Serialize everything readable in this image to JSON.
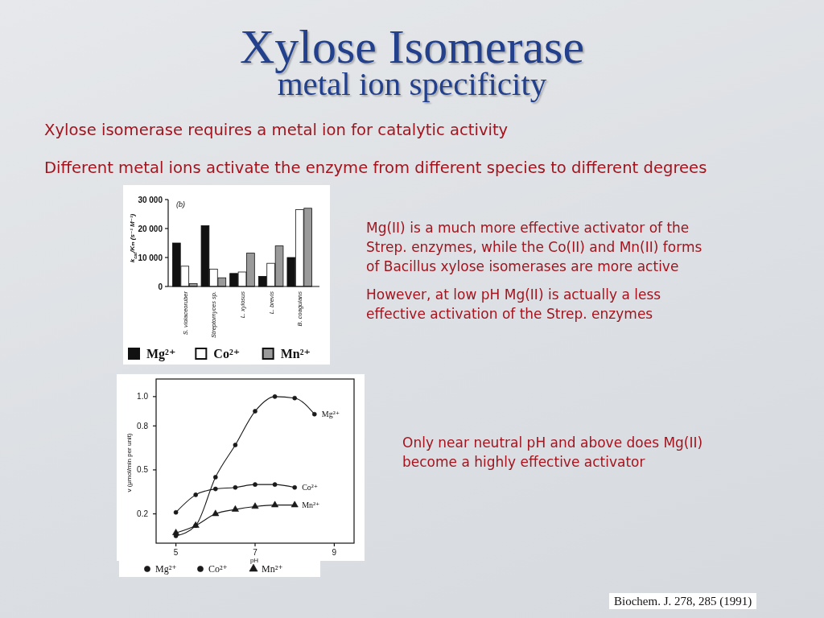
{
  "chart_data": [
    {
      "type": "other",
      "title": "Xylose Isomerase",
      "subtitle": "metal ion specificity",
      "annotations": [
        "Xylose isomerase requires a metal ion for catalytic activity",
        "Different metal ions activate the enzyme from different species to different degrees",
        "Mg(II) is a much more effective activator of the Strep. enzymes, while the Co(II) and Mn(II) forms of Bacillus xylose isomerases are more active",
        "However, at low pH Mg(II) is actually a less effective activation of the Strep. enzymes",
        "Only near neutral pH and above does Mg(II) become a highly effective activator",
        "Biochem. J. 278, 285 (1991)"
      ]
    },
    {
      "type": "bar",
      "ylabel": "k$_{cat}$/Kₘ (s⁻¹ M⁻¹)",
      "annotations": [
        "(b)"
      ],
      "categories": [
        "S. violaceoruber",
        "Streptomyces sp.",
        "L. xylosus",
        "L. brevis",
        "B. coagulans"
      ],
      "series": [
        {
          "name": "Mg²⁺",
          "color": "#111111",
          "values": [
            15000,
            21000,
            4500,
            3500,
            10000
          ]
        },
        {
          "name": "Co²⁺",
          "color": "#ffffff",
          "values": [
            7000,
            6000,
            5000,
            8000,
            26500
          ]
        },
        {
          "name": "Mn²⁺",
          "color": "#9a9a9a",
          "values": [
            1000,
            3000,
            11500,
            14000,
            27000
          ]
        }
      ],
      "ylim": [
        0,
        30000
      ],
      "yticks": [
        0,
        {
          "value": 10000,
          "label": "10 000"
        },
        {
          "value": 20000,
          "label": "20 000"
        },
        {
          "value": 30000,
          "label": "30 000"
        }
      ],
      "legend": "bottom"
    },
    {
      "type": "line",
      "xlabel": "pH",
      "ylabel": "v (μmol/min per unit)",
      "xlim": [
        4.5,
        9.5
      ],
      "xticks": [
        5,
        7,
        9
      ],
      "ylim": [
        0,
        1.12
      ],
      "yticks": [
        0.2,
        0.5,
        0.8,
        {
          "value": 1,
          "label": "1.0"
        }
      ],
      "series": [
        {
          "name": "Mg²⁺",
          "color": "#1a1a1a",
          "marker": "circle",
          "x": [
            5,
            5.5,
            6,
            6.5,
            7,
            7.5,
            8,
            8.5
          ],
          "values": [
            0.05,
            0.12,
            0.45,
            0.67,
            0.9,
            1.0,
            0.99,
            0.88
          ]
        },
        {
          "name": "Co²⁺",
          "color": "#1a1a1a",
          "marker": "circle",
          "x": [
            5,
            5.5,
            6,
            6.5,
            7,
            7.5,
            8
          ],
          "values": [
            0.21,
            0.33,
            0.37,
            0.38,
            0.4,
            0.4,
            0.38
          ]
        },
        {
          "name": "Mn²⁺",
          "color": "#1a1a1a",
          "marker": "triangle",
          "x": [
            5,
            5.5,
            6,
            6.5,
            7,
            7.5,
            8
          ],
          "values": [
            0.07,
            0.12,
            0.2,
            0.23,
            0.25,
            0.26,
            0.26
          ]
        }
      ],
      "legend": "bottom"
    }
  ]
}
